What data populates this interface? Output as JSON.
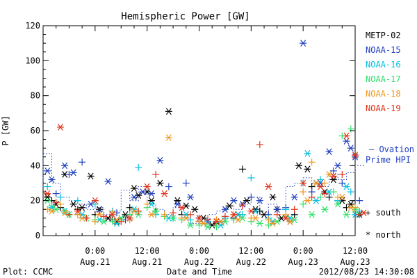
{
  "chart_data": {
    "type": "scatter",
    "title": "Hemispheric Power [GW]",
    "ylabel": "P [GW]",
    "xlabel": "Date and Time",
    "ylim": [
      0,
      120
    ],
    "yticks": [
      0,
      20,
      40,
      60,
      80,
      100,
      120
    ],
    "xlim_hours": [
      0,
      72
    ],
    "xticks": [
      {
        "hour": 12,
        "time": "0:00",
        "date": "Aug.21"
      },
      {
        "hour": 24,
        "time": "12:00",
        "date": "Aug.21"
      },
      {
        "hour": 36,
        "time": "0:00",
        "date": "Aug.22"
      },
      {
        "hour": 48,
        "time": "12:00",
        "date": "Aug.22"
      },
      {
        "hour": 60,
        "time": "0:00",
        "date": "Aug.23"
      },
      {
        "hour": 72,
        "time": "12:00",
        "date": "Aug.23"
      }
    ],
    "grid": false,
    "legend_position": "right",
    "series": [
      {
        "name": "METP-02",
        "color": "#000000",
        "north": [
          [
            1,
            22
          ],
          [
            3,
            18
          ],
          [
            5,
            35
          ],
          [
            7,
            18
          ],
          [
            9,
            16
          ],
          [
            11,
            34
          ],
          [
            13,
            15
          ],
          [
            15,
            10
          ],
          [
            17,
            8
          ],
          [
            19,
            12
          ],
          [
            21,
            27
          ],
          [
            22,
            23
          ],
          [
            24,
            25
          ],
          [
            25,
            20
          ],
          [
            27,
            30
          ],
          [
            29,
            71
          ],
          [
            31,
            20
          ],
          [
            33,
            17
          ],
          [
            35,
            15
          ],
          [
            37,
            10
          ],
          [
            39,
            6
          ],
          [
            41,
            8
          ],
          [
            43,
            17
          ],
          [
            45,
            12
          ],
          [
            47,
            20
          ],
          [
            49,
            15
          ],
          [
            51,
            12
          ],
          [
            53,
            22
          ],
          [
            55,
            10
          ],
          [
            57,
            8
          ],
          [
            59,
            40
          ],
          [
            61,
            38
          ],
          [
            63,
            30
          ],
          [
            65,
            25
          ],
          [
            67,
            32
          ],
          [
            69,
            20
          ],
          [
            71,
            18
          ],
          [
            73,
            12
          ]
        ],
        "south": [
          [
            2,
            20
          ],
          [
            4,
            16
          ],
          [
            8,
            15
          ],
          [
            12,
            12
          ],
          [
            16,
            9
          ],
          [
            20,
            16
          ],
          [
            26,
            14
          ],
          [
            32,
            12
          ],
          [
            36,
            8
          ],
          [
            40,
            7
          ],
          [
            44,
            10
          ],
          [
            46,
            38
          ],
          [
            50,
            14
          ],
          [
            54,
            15
          ],
          [
            58,
            12
          ],
          [
            62,
            28
          ],
          [
            66,
            22
          ],
          [
            70,
            16
          ]
        ]
      },
      {
        "name": "NOAA-15",
        "color": "#1f3fbf",
        "north": [
          [
            1,
            37
          ],
          [
            2,
            32
          ],
          [
            5,
            40
          ],
          [
            7,
            36
          ],
          [
            11,
            18
          ],
          [
            15,
            31
          ],
          [
            21,
            22
          ],
          [
            23,
            25
          ],
          [
            25,
            24
          ],
          [
            27,
            43
          ],
          [
            31,
            18
          ],
          [
            34,
            22
          ],
          [
            38,
            8
          ],
          [
            42,
            15
          ],
          [
            44,
            20
          ],
          [
            46,
            18
          ],
          [
            50,
            20
          ],
          [
            54,
            15
          ],
          [
            58,
            22
          ],
          [
            60,
            110
          ],
          [
            64,
            30
          ],
          [
            66,
            48
          ],
          [
            68,
            40
          ],
          [
            70,
            54
          ],
          [
            71,
            50
          ],
          [
            72,
            45
          ]
        ],
        "south": [
          [
            3,
            24
          ],
          [
            6,
            35
          ],
          [
            9,
            42
          ],
          [
            13,
            14
          ],
          [
            17,
            13
          ],
          [
            19,
            9
          ],
          [
            29,
            28
          ],
          [
            33,
            30
          ],
          [
            36,
            10
          ],
          [
            40,
            8
          ],
          [
            48,
            22
          ],
          [
            52,
            12
          ],
          [
            56,
            16
          ],
          [
            62,
            25
          ],
          [
            67,
            37
          ],
          [
            69,
            30
          ],
          [
            73,
            20
          ]
        ]
      },
      {
        "name": "NOAA-16",
        "color": "#00bfe0",
        "north": [
          [
            2,
            16
          ],
          [
            5,
            14
          ],
          [
            9,
            12
          ],
          [
            13,
            9
          ],
          [
            17,
            7
          ],
          [
            21,
            15
          ],
          [
            25,
            18
          ],
          [
            29,
            10
          ],
          [
            33,
            12
          ],
          [
            37,
            7
          ],
          [
            41,
            6
          ],
          [
            45,
            12
          ],
          [
            49,
            14
          ],
          [
            53,
            8
          ],
          [
            57,
            10
          ],
          [
            61,
            47
          ],
          [
            63,
            20
          ],
          [
            66,
            25
          ],
          [
            70,
            28
          ],
          [
            72,
            12
          ]
        ],
        "south": [
          [
            1,
            28
          ],
          [
            4,
            22
          ],
          [
            8,
            20
          ],
          [
            12,
            18
          ],
          [
            16,
            14
          ],
          [
            20,
            10
          ],
          [
            22,
            39
          ],
          [
            26,
            12
          ],
          [
            30,
            10
          ],
          [
            34,
            9
          ],
          [
            38,
            8
          ],
          [
            42,
            10
          ],
          [
            46,
            12
          ],
          [
            48,
            33
          ],
          [
            52,
            10
          ],
          [
            56,
            15
          ],
          [
            60,
            30
          ],
          [
            64,
            32
          ],
          [
            68,
            20
          ],
          [
            71,
            25
          ],
          [
            73,
            14
          ]
        ]
      },
      {
        "name": "NOAA-17",
        "color": "#2ee06a",
        "north": [
          [
            1,
            20
          ],
          [
            3,
            15
          ],
          [
            6,
            12
          ],
          [
            10,
            10
          ],
          [
            14,
            8
          ],
          [
            18,
            10
          ],
          [
            22,
            12
          ],
          [
            26,
            14
          ],
          [
            30,
            10
          ],
          [
            34,
            6
          ],
          [
            38,
            5
          ],
          [
            42,
            8
          ],
          [
            46,
            10
          ],
          [
            50,
            7
          ],
          [
            54,
            8
          ],
          [
            58,
            9
          ],
          [
            62,
            12
          ],
          [
            65,
            15
          ],
          [
            68,
            18
          ],
          [
            70,
            12
          ],
          [
            72,
            15
          ]
        ],
        "south": [
          [
            2,
            17
          ],
          [
            5,
            14
          ],
          [
            8,
            12
          ],
          [
            12,
            9
          ],
          [
            16,
            8
          ],
          [
            20,
            12
          ],
          [
            24,
            16
          ],
          [
            28,
            11
          ],
          [
            32,
            9
          ],
          [
            36,
            6
          ],
          [
            40,
            5
          ],
          [
            44,
            9
          ],
          [
            48,
            8
          ],
          [
            52,
            6
          ],
          [
            56,
            11
          ],
          [
            60,
            18
          ],
          [
            64,
            22
          ],
          [
            67,
            25
          ],
          [
            69,
            57
          ],
          [
            71,
            61
          ],
          [
            73,
            13
          ]
        ]
      },
      {
        "name": "NOAA-18",
        "color": "#f0961e",
        "north": [
          [
            2,
            14
          ],
          [
            5,
            13
          ],
          [
            9,
            10
          ],
          [
            13,
            12
          ],
          [
            17,
            9
          ],
          [
            21,
            14
          ],
          [
            25,
            12
          ],
          [
            29,
            56
          ],
          [
            33,
            10
          ],
          [
            37,
            7
          ],
          [
            41,
            8
          ],
          [
            45,
            9
          ],
          [
            49,
            10
          ],
          [
            53,
            7
          ],
          [
            57,
            8
          ],
          [
            61,
            20
          ],
          [
            63,
            30
          ],
          [
            66,
            35
          ],
          [
            69,
            22
          ],
          [
            71,
            16
          ]
        ],
        "south": [
          [
            1,
            15
          ],
          [
            4,
            18
          ],
          [
            8,
            12
          ],
          [
            12,
            8
          ],
          [
            16,
            13
          ],
          [
            20,
            9
          ],
          [
            24,
            18
          ],
          [
            28,
            12
          ],
          [
            32,
            10
          ],
          [
            36,
            8
          ],
          [
            40,
            9
          ],
          [
            44,
            12
          ],
          [
            48,
            10
          ],
          [
            52,
            9
          ],
          [
            56,
            12
          ],
          [
            60,
            25
          ],
          [
            62,
            42
          ],
          [
            65,
            30
          ],
          [
            68,
            22
          ],
          [
            72,
            16
          ]
        ]
      },
      {
        "name": "NOAA-19",
        "color": "#e03218",
        "north": [
          [
            1,
            24
          ],
          [
            4,
            62
          ],
          [
            8,
            14
          ],
          [
            12,
            20
          ],
          [
            16,
            12
          ],
          [
            20,
            10
          ],
          [
            24,
            28
          ],
          [
            28,
            24
          ],
          [
            32,
            16
          ],
          [
            36,
            10
          ],
          [
            40,
            8
          ],
          [
            44,
            12
          ],
          [
            48,
            14
          ],
          [
            52,
            28
          ],
          [
            56,
            10
          ],
          [
            60,
            30
          ],
          [
            64,
            28
          ],
          [
            67,
            34
          ],
          [
            70,
            57
          ],
          [
            72,
            46
          ],
          [
            74,
            13
          ]
        ],
        "south": [
          [
            3,
            19
          ],
          [
            6,
            12
          ],
          [
            10,
            10
          ],
          [
            14,
            11
          ],
          [
            18,
            8
          ],
          [
            22,
            14
          ],
          [
            26,
            35
          ],
          [
            30,
            13
          ],
          [
            34,
            12
          ],
          [
            38,
            9
          ],
          [
            42,
            11
          ],
          [
            46,
            17
          ],
          [
            50,
            52
          ],
          [
            54,
            12
          ],
          [
            58,
            15
          ],
          [
            62,
            22
          ],
          [
            65,
            24
          ],
          [
            69,
            35
          ],
          [
            73,
            12
          ]
        ]
      }
    ],
    "ovation": {
      "label_line1": "– Ovation",
      "label_line2": "Prime HPI",
      "color": "#1f3fbf",
      "steps": [
        [
          0,
          28
        ],
        [
          2,
          47
        ],
        [
          4,
          30
        ],
        [
          6,
          22
        ],
        [
          8,
          20
        ],
        [
          10,
          18
        ],
        [
          12,
          15
        ],
        [
          14,
          16
        ],
        [
          16,
          12
        ],
        [
          18,
          14
        ],
        [
          20,
          26
        ],
        [
          22,
          20
        ],
        [
          24,
          28
        ],
        [
          26,
          18
        ],
        [
          28,
          15
        ],
        [
          30,
          12
        ],
        [
          32,
          16
        ],
        [
          34,
          10
        ],
        [
          36,
          7
        ],
        [
          38,
          8
        ],
        [
          40,
          12
        ],
        [
          42,
          14
        ],
        [
          44,
          17
        ],
        [
          46,
          15
        ],
        [
          48,
          18
        ],
        [
          50,
          22
        ],
        [
          52,
          12
        ],
        [
          54,
          18
        ],
        [
          56,
          15
        ],
        [
          58,
          28
        ],
        [
          60,
          30
        ],
        [
          62,
          33
        ],
        [
          64,
          30
        ],
        [
          66,
          28
        ],
        [
          68,
          35
        ],
        [
          70,
          32
        ],
        [
          72,
          36
        ],
        [
          74,
          40
        ]
      ]
    },
    "symbol_legend": {
      "south": "+ south",
      "north": "* north"
    }
  },
  "footer": {
    "plot_credit": "Plot: CCMC",
    "axis_caption": "Date and Time",
    "timestamp": "2012/08/23 14:30:08"
  }
}
